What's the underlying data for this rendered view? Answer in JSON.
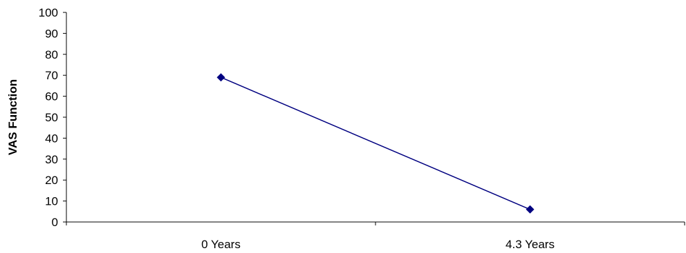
{
  "chart_data": {
    "type": "line",
    "title": "",
    "xlabel": "",
    "ylabel": "VAS Function",
    "categories": [
      "0 Years",
      "4.3 Years"
    ],
    "series": [
      {
        "values": [
          69,
          6
        ],
        "color": "#000080",
        "marker": "diamond"
      }
    ],
    "ylim": [
      0,
      100
    ],
    "yticks": [
      0,
      10,
      20,
      30,
      40,
      50,
      60,
      70,
      80,
      90,
      100
    ],
    "grid": false,
    "legend": "none"
  }
}
